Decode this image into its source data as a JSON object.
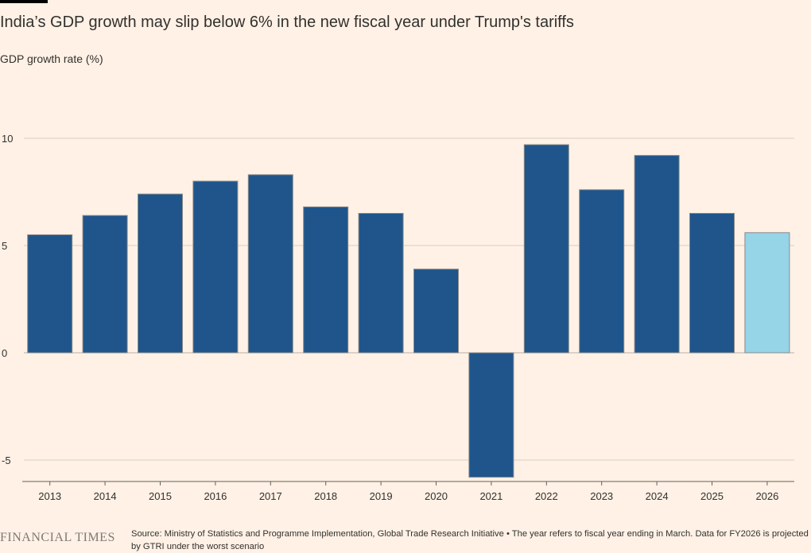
{
  "header": {
    "title": "India’s GDP growth may slip below 6% in the new fiscal year under Trump's tariffs",
    "subtitle": "GDP growth rate (%)"
  },
  "footer": {
    "brand": "FINANCIAL TIMES",
    "source": "Source: Ministry of Statistics and Programme Implementation, Global Trade Research Initiative • The year refers to fiscal year ending in March. Data for FY2026 is projected by GTRI under the worst scenario"
  },
  "colors": {
    "background": "#fff1e5",
    "bar": "#1f558b",
    "projected_bar": "#96d4e8",
    "grid": "#d9cdc4",
    "text": "#33302e"
  },
  "chart_data": {
    "type": "bar",
    "title": "India’s GDP growth may slip below 6% in the new fiscal year under Trump's tariffs",
    "ylabel": "GDP growth rate (%)",
    "xlabel": "",
    "categories": [
      "2013",
      "2014",
      "2015",
      "2016",
      "2017",
      "2018",
      "2019",
      "2020",
      "2021",
      "2022",
      "2023",
      "2024",
      "2025",
      "2026"
    ],
    "values": [
      5.5,
      6.4,
      7.4,
      8.0,
      8.3,
      6.8,
      6.5,
      3.9,
      -5.8,
      9.7,
      7.6,
      9.2,
      6.5,
      5.6
    ],
    "projected": [
      false,
      false,
      false,
      false,
      false,
      false,
      false,
      false,
      false,
      false,
      false,
      false,
      false,
      true
    ],
    "yticks": [
      10,
      5,
      0,
      -5
    ],
    "ytick_labels": [
      "10",
      "5",
      "0",
      "-5"
    ],
    "ylim": [
      -6,
      10
    ],
    "grid": true,
    "legend": false
  }
}
